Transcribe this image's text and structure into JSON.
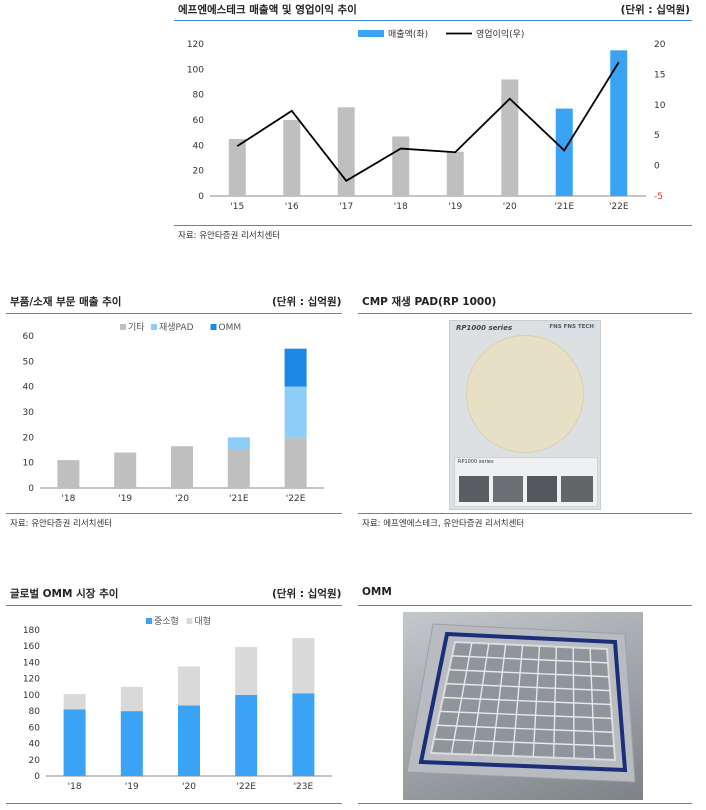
{
  "panel1": {
    "title": "에프엔에스테크 매출액 및 영업이익 추이",
    "unit": "(단위 : 십억원)",
    "source": "자료: 유안타증권 리서치센터"
  },
  "panel2": {
    "title": "부품/소재 부문 매출 추이",
    "unit": "(단위 : 십억원)",
    "source": "자료: 유안타증권 리서치센터"
  },
  "panel3": {
    "title": "CMP 재생 PAD(RP 1000)",
    "source": "자료: 에프엔에스테크, 유안타증권 리서치센터",
    "photo_title": "RP1000 series",
    "photo_logo": "FNS FNS TECH",
    "photo_lower_label": "RP1000 series"
  },
  "panel4": {
    "title": "글로벌 OMM 시장 추이",
    "unit": "(단위 : 십억원)"
  },
  "panel5": {
    "title": "OMM"
  },
  "colors": {
    "gray": "#bfbfbf",
    "blue": "#3aa3f5",
    "light_blue": "#8fcdf9",
    "dark_blue": "#1e88e5",
    "line": "#000000",
    "rule": "#3b8fd6",
    "pad_fill": "#e8e0c6",
    "frame_blue": "#1a2f7a"
  },
  "chart_data": [
    {
      "type": "bar",
      "id": "revenue_op",
      "categories": [
        "'15",
        "'16",
        "'17",
        "'18",
        "'19",
        "'20",
        "'21E",
        "'22E"
      ],
      "series": [
        {
          "name": "매출액(좌)",
          "axis": "left",
          "type": "bar",
          "values": [
            45,
            60,
            70,
            47,
            35,
            92,
            69,
            115
          ],
          "highlight": [
            false,
            false,
            false,
            false,
            false,
            false,
            true,
            true
          ]
        },
        {
          "name": "영업이익(우)",
          "axis": "right",
          "type": "line",
          "values": [
            3.2,
            9,
            -2.5,
            2.8,
            2.2,
            11,
            2.5,
            17
          ]
        }
      ],
      "ylim": [
        0,
        120
      ],
      "yticks": [
        0,
        20,
        40,
        60,
        80,
        100,
        120
      ],
      "y2lim": [
        -5,
        20
      ],
      "y2ticks": [
        -5,
        0,
        5,
        10,
        15,
        20
      ],
      "legend": "top-right"
    },
    {
      "type": "bar",
      "id": "parts_materials",
      "stacked": true,
      "categories": [
        "'18",
        "'19",
        "'20",
        "'21E",
        "'22E"
      ],
      "series": [
        {
          "name": "기타",
          "values": [
            11,
            14,
            16.5,
            15,
            20
          ]
        },
        {
          "name": "재생PAD",
          "values": [
            0,
            0,
            0,
            5,
            20
          ]
        },
        {
          "name": "OMM",
          "values": [
            0,
            0,
            0,
            0,
            15
          ]
        }
      ],
      "ylim": [
        0,
        60
      ],
      "yticks": [
        0,
        10,
        20,
        30,
        40,
        50,
        60
      ],
      "legend": "top-center"
    },
    {
      "type": "bar",
      "id": "global_omm",
      "stacked": true,
      "categories": [
        "'18",
        "'19",
        "'20",
        "'22E",
        "'23E"
      ],
      "series": [
        {
          "name": "중소형",
          "values": [
            82,
            80,
            87,
            100,
            102
          ]
        },
        {
          "name": "대형",
          "values": [
            19,
            30,
            48,
            59,
            68
          ]
        }
      ],
      "ylim": [
        0,
        180
      ],
      "yticks": [
        0,
        20,
        40,
        60,
        80,
        100,
        120,
        140,
        160,
        180
      ],
      "legend": "top-center"
    }
  ]
}
